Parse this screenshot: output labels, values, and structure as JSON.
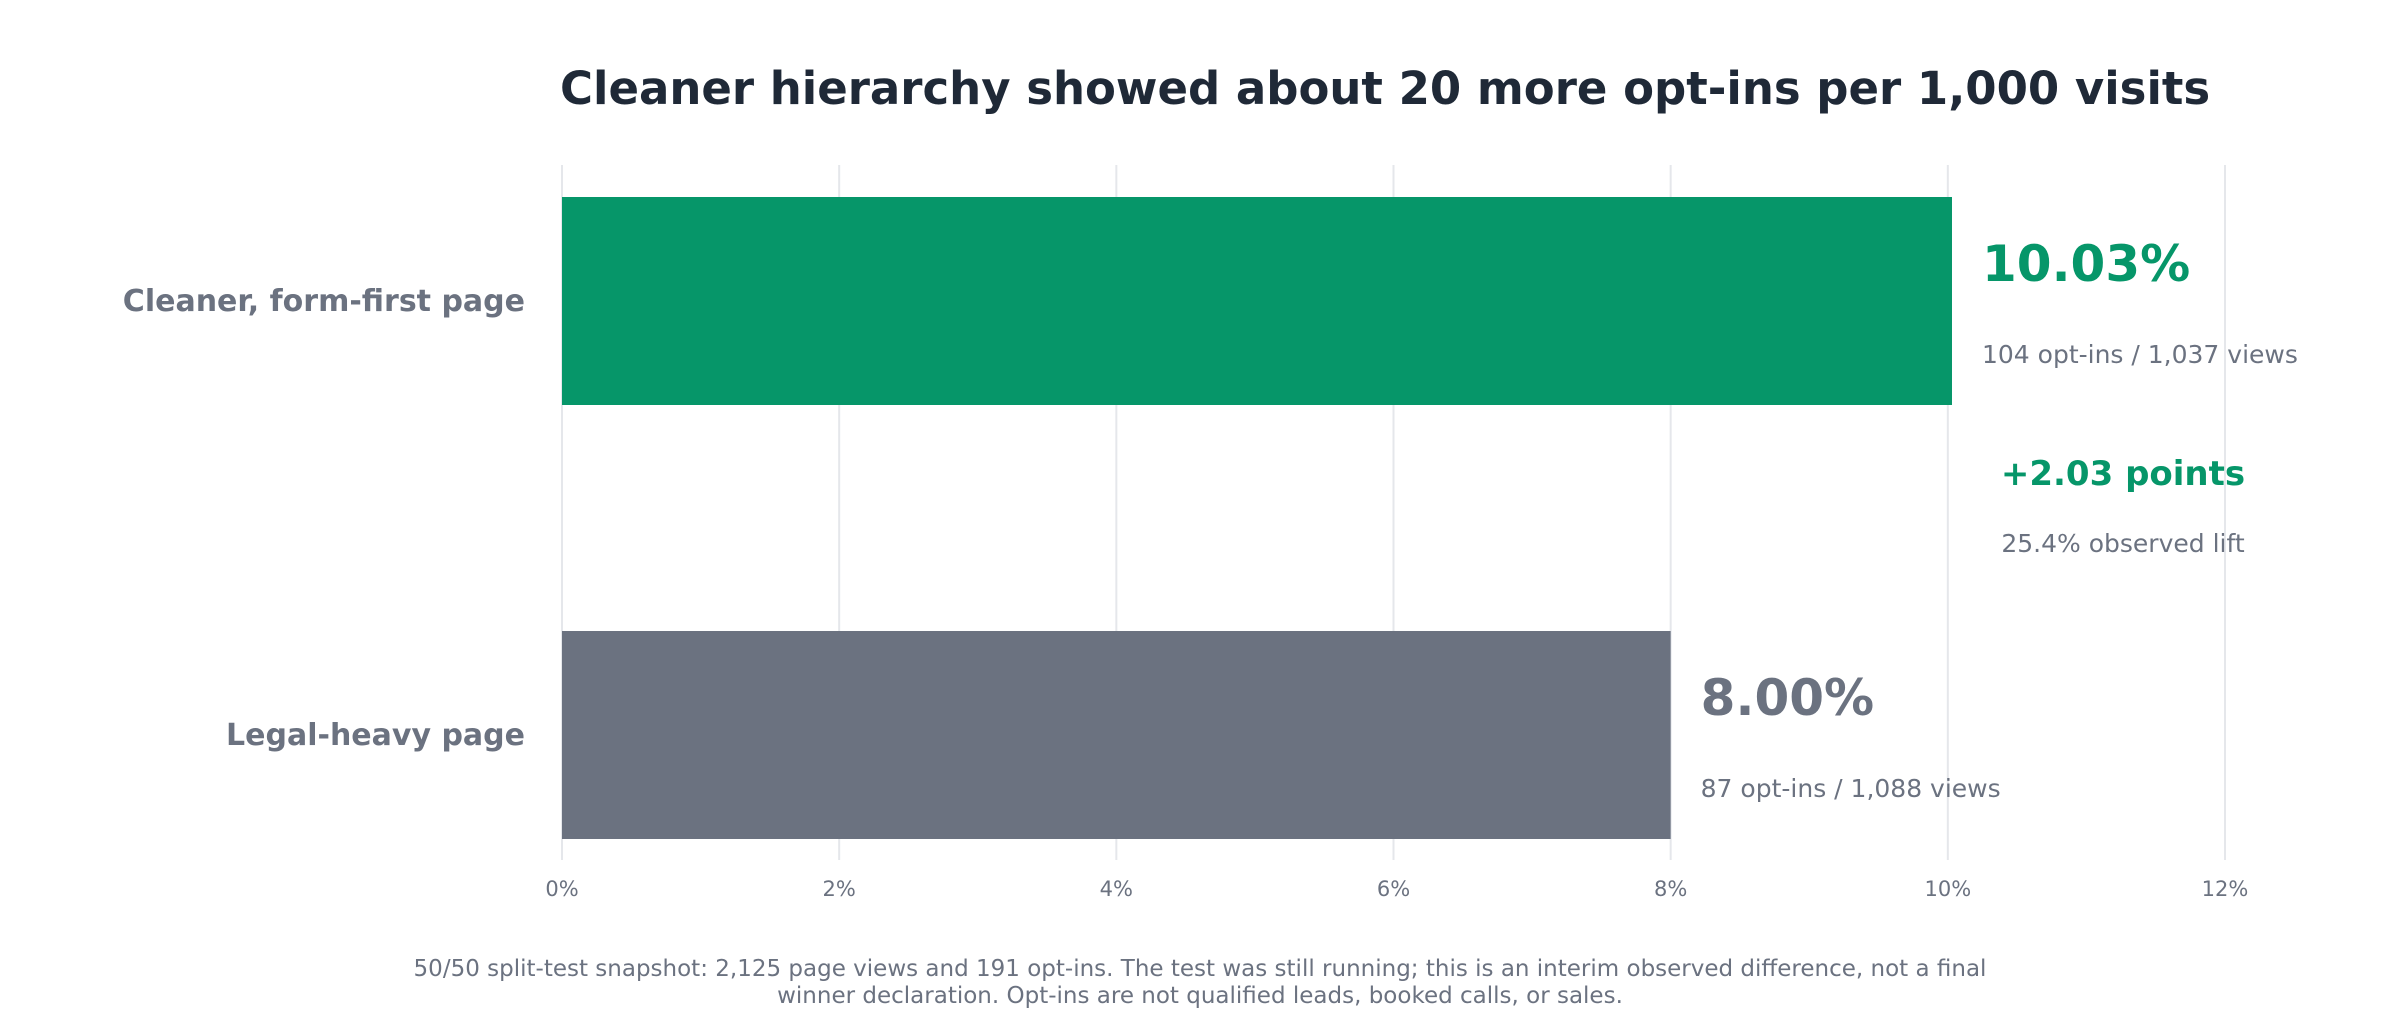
{
  "colors": {
    "accent": "#069669",
    "baseline": "#6b7280",
    "title": "#1f2937",
    "muted": "#6b7280",
    "grid": "#e5e7eb"
  },
  "chart_data": {
    "type": "bar",
    "orientation": "horizontal",
    "title": "Cleaner hierarchy showed about 20 more opt-ins per 1,000 visits",
    "xlabel": "",
    "ylabel": "",
    "xlim": [
      0,
      12
    ],
    "x_ticks": [
      {
        "value": 0,
        "label": "0%"
      },
      {
        "value": 2,
        "label": "2%"
      },
      {
        "value": 4,
        "label": "4%"
      },
      {
        "value": 6,
        "label": "6%"
      },
      {
        "value": 8,
        "label": "8%"
      },
      {
        "value": 10,
        "label": "10%"
      },
      {
        "value": 12,
        "label": "12%"
      }
    ],
    "grid": "vertical",
    "bars": [
      {
        "category": "Cleaner, form-first page",
        "value": 10.03,
        "value_label": "10.03%",
        "detail": "104 opt-ins / 1,037 views",
        "color": "#069669"
      },
      {
        "category": "Legal-heavy page",
        "value": 8.0,
        "value_label": "8.00%",
        "detail": "87 opt-ins / 1,088 views",
        "color": "#6b7280"
      }
    ],
    "annotation": {
      "headline": "+2.03 points",
      "detail": "25.4% observed lift"
    },
    "footnote": [
      "50/50 split-test snapshot: 2,125 page views and 191 opt-ins. The test was still running; this is an interim observed difference, not a final",
      "winner declaration. Opt-ins are not qualified leads, booked calls, or sales."
    ]
  }
}
